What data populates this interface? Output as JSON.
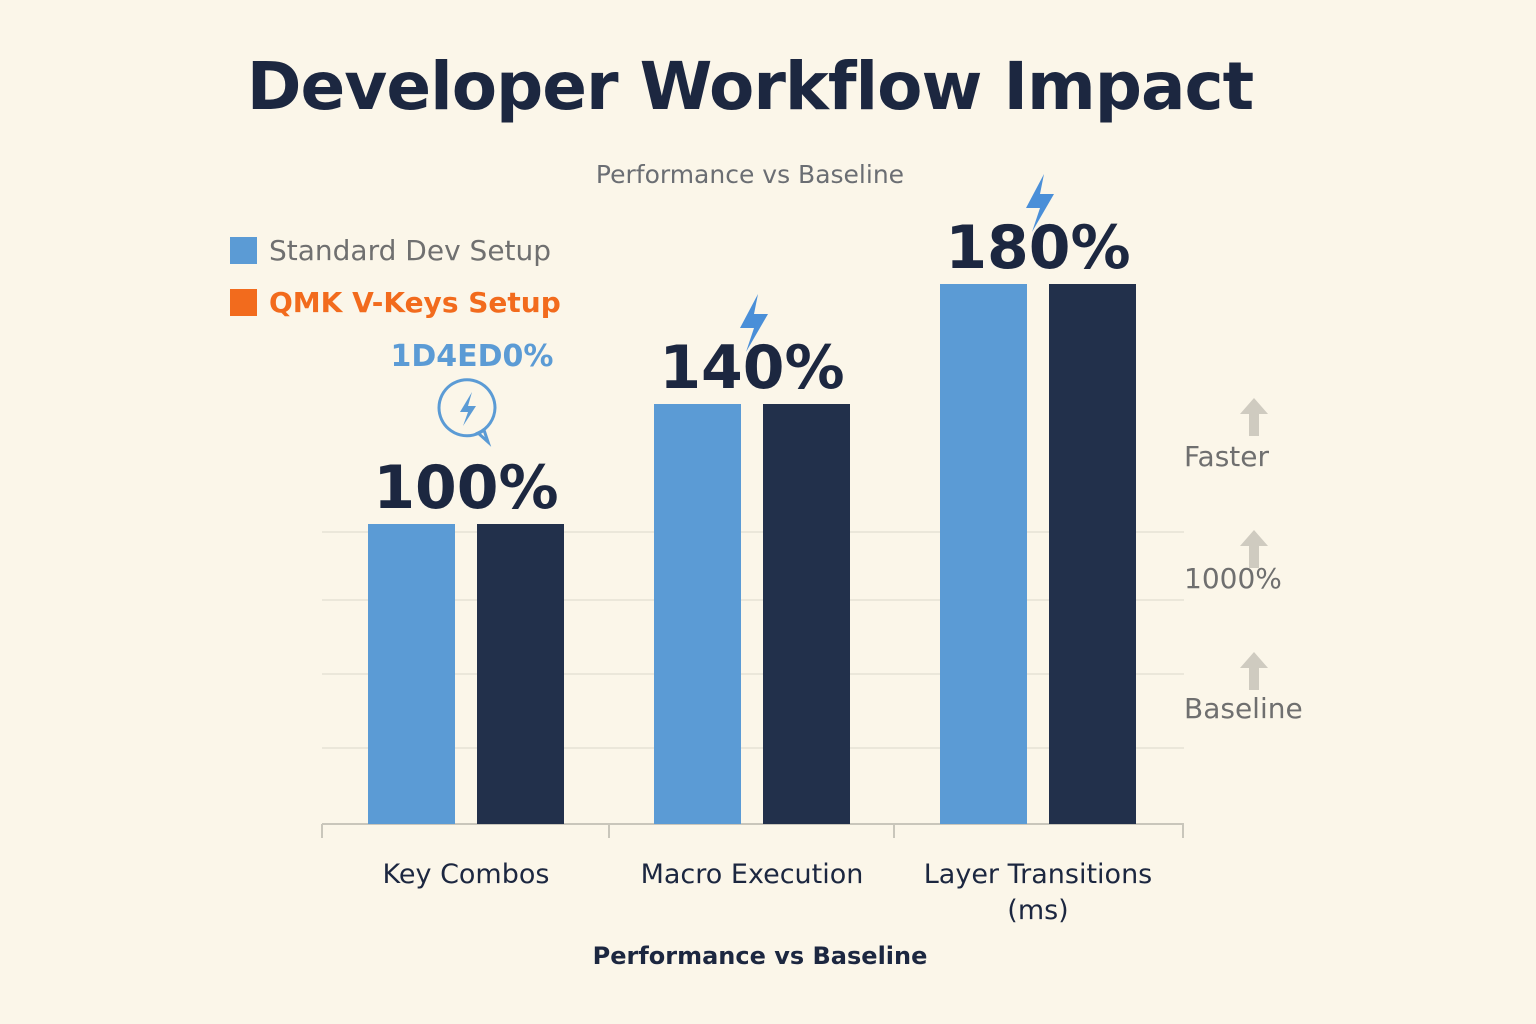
{
  "title": "Developer Workflow Impact",
  "subtitle": "Performance vs Baseline",
  "legend": [
    {
      "label": "Standard Dev Setup",
      "color": "#5b9bd5",
      "text_color": "#707070"
    },
    {
      "label": "QMK V-Keys Setup",
      "color": "#f26b1d",
      "text_color": "#f26b1d"
    }
  ],
  "annotation": {
    "text": "1D4ED0%",
    "color": "#5b9bd5",
    "icon": "lightning-bubble-icon"
  },
  "side_labels": {
    "faster": "Faster",
    "mid": "1000%",
    "baseline": "Baseline"
  },
  "xlabel": "Performance vs Baseline",
  "chart_data": {
    "type": "bar",
    "categories": [
      "Key Combos",
      "Macro Execution",
      "Layer Transitions (ms)"
    ],
    "category_lines": [
      [
        "Key Combos"
      ],
      [
        "Macro Execution"
      ],
      [
        "Layer Transitions",
        "(ms)"
      ]
    ],
    "series": [
      {
        "values": [
          100,
          140,
          180
        ],
        "color": "#5b9bd5"
      },
      {
        "values": [
          100,
          140,
          180
        ],
        "color": "#22304b"
      }
    ],
    "data_labels": [
      "100%",
      "140%",
      "180%"
    ],
    "ylim": [
      0,
      240
    ],
    "grid": true,
    "colors": {
      "bar_label": "#1c2740",
      "bolt": "#4a8fd8",
      "axis": "#c9c6bb",
      "grid": "#e6e2d6"
    }
  }
}
